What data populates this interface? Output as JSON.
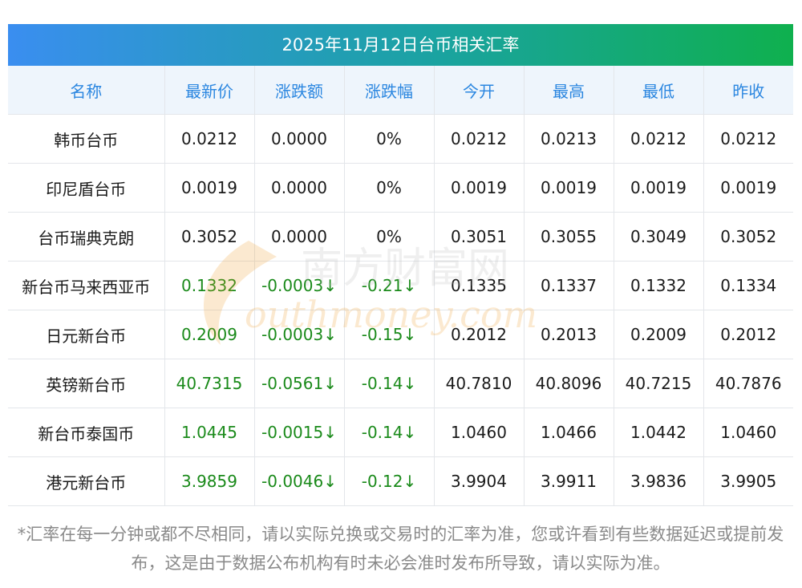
{
  "title": "2025年11月12日台币相关汇率",
  "columns": [
    "名称",
    "最新价",
    "涨跌额",
    "涨跌幅",
    "今开",
    "最高",
    "最低",
    "昨收"
  ],
  "rows": [
    {
      "name": "韩币台币",
      "latest": "0.0212",
      "change": "0.0000",
      "pct": "0%",
      "open": "0.0212",
      "high": "0.0213",
      "low": "0.0212",
      "prev": "0.0212",
      "down": false
    },
    {
      "name": "印尼盾台币",
      "latest": "0.0019",
      "change": "0.0000",
      "pct": "0%",
      "open": "0.0019",
      "high": "0.0019",
      "low": "0.0019",
      "prev": "0.0019",
      "down": false
    },
    {
      "name": "台币瑞典克朗",
      "latest": "0.3052",
      "change": "0.0000",
      "pct": "0%",
      "open": "0.3051",
      "high": "0.3055",
      "low": "0.3049",
      "prev": "0.3052",
      "down": false
    },
    {
      "name": "新台币马来西亚币",
      "latest": "0.1332",
      "change": "-0.0003↓",
      "pct": "-0.21↓",
      "open": "0.1335",
      "high": "0.1337",
      "low": "0.1332",
      "prev": "0.1334",
      "down": true
    },
    {
      "name": "日元新台币",
      "latest": "0.2009",
      "change": "-0.0003↓",
      "pct": "-0.15↓",
      "open": "0.2012",
      "high": "0.2013",
      "low": "0.2009",
      "prev": "0.2012",
      "down": true
    },
    {
      "name": "英镑新台币",
      "latest": "40.7315",
      "change": "-0.0561↓",
      "pct": "-0.14↓",
      "open": "40.7810",
      "high": "40.8096",
      "low": "40.7215",
      "prev": "40.7876",
      "down": true
    },
    {
      "name": "新台币泰国币",
      "latest": "1.0445",
      "change": "-0.0015↓",
      "pct": "-0.14↓",
      "open": "1.0460",
      "high": "1.0466",
      "low": "1.0442",
      "prev": "1.0460",
      "down": true
    },
    {
      "name": "港元新台币",
      "latest": "3.9859",
      "change": "-0.0046↓",
      "pct": "-0.12↓",
      "open": "3.9904",
      "high": "3.9911",
      "low": "3.9836",
      "prev": "3.9905",
      "down": true
    }
  ],
  "footnote": "*汇率在每一分钟或都不尽相同，请以实际兑换或交易时的汇率为准，您或许看到有些数据延迟或提前发布，这是由于数据公布机构有时未必会准时发布所导致，请以实际为准。",
  "watermark": {
    "text_cn": "南方财富网",
    "text_en": "outhmoney.com"
  },
  "colors": {
    "header_text": "#2a86e0",
    "down": "#1a8a1a",
    "title_gradient_start": "#3a8ef0",
    "title_gradient_end": "#0fb04e"
  }
}
